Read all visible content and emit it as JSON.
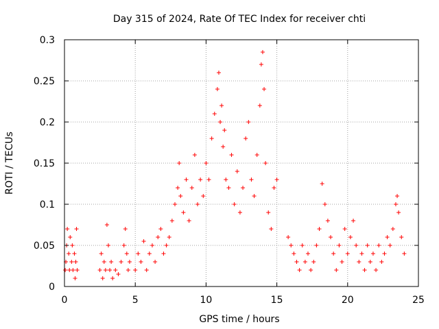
{
  "chart_data": {
    "type": "scatter",
    "title": "Day 315 of 2024, Rate Of TEC Index for receiver chti",
    "xlabel": "GPS time / hours",
    "ylabel": "ROTI / TECUs",
    "xlim": [
      0,
      25
    ],
    "ylim": [
      0,
      0.3
    ],
    "xticks": [
      0,
      5,
      10,
      15,
      20,
      25
    ],
    "yticks": [
      0,
      0.05,
      0.1,
      0.15,
      0.2,
      0.25,
      0.3
    ],
    "xtick_labels": [
      "0",
      "5",
      "10",
      "15",
      "20",
      "25"
    ],
    "ytick_labels": [
      "0",
      "0.05",
      "0.1",
      "0.15",
      "0.2",
      "0.25",
      "0.3"
    ],
    "grid": true,
    "marker": "plus",
    "color": "#ff0000",
    "series": [
      {
        "name": "ROTI",
        "x": [
          0.05,
          0.1,
          0.15,
          0.2,
          0.3,
          0.35,
          0.4,
          0.5,
          0.55,
          0.6,
          0.7,
          0.75,
          0.8,
          0.85,
          0.9,
          2.5,
          2.6,
          2.7,
          2.8,
          2.9,
          3.0,
          3.1,
          3.2,
          3.3,
          3.4,
          3.6,
          3.8,
          4.0,
          4.2,
          4.3,
          4.4,
          4.5,
          4.6,
          5.0,
          5.2,
          5.4,
          5.6,
          5.8,
          6.0,
          6.2,
          6.4,
          6.6,
          6.8,
          7.0,
          7.2,
          7.4,
          7.6,
          7.8,
          8.0,
          8.1,
          8.2,
          8.4,
          8.6,
          8.8,
          9.0,
          9.2,
          9.4,
          9.6,
          9.8,
          10.0,
          10.2,
          10.4,
          10.6,
          10.8,
          10.9,
          11.0,
          11.1,
          11.2,
          11.3,
          11.4,
          11.6,
          11.8,
          12.0,
          12.2,
          12.4,
          12.6,
          12.8,
          13.0,
          13.2,
          13.4,
          13.6,
          13.8,
          13.9,
          14.0,
          14.1,
          14.2,
          14.4,
          14.6,
          14.8,
          15.0,
          15.8,
          16.0,
          16.2,
          16.4,
          16.6,
          16.8,
          17.0,
          17.2,
          17.4,
          17.6,
          17.8,
          18.0,
          18.2,
          18.4,
          18.6,
          18.8,
          19.0,
          19.2,
          19.4,
          19.6,
          19.8,
          20.0,
          20.2,
          20.4,
          20.6,
          20.8,
          21.0,
          21.2,
          21.4,
          21.6,
          21.8,
          22.0,
          22.2,
          22.4,
          22.6,
          22.8,
          23.0,
          23.2,
          23.4,
          23.5,
          23.6,
          23.8,
          24.0
        ],
        "y": [
          0.02,
          0.03,
          0.05,
          0.07,
          0.04,
          0.02,
          0.06,
          0.03,
          0.05,
          0.02,
          0.04,
          0.01,
          0.03,
          0.07,
          0.02,
          0.02,
          0.04,
          0.01,
          0.03,
          0.02,
          0.075,
          0.05,
          0.02,
          0.03,
          0.01,
          0.02,
          0.015,
          0.03,
          0.05,
          0.07,
          0.04,
          0.02,
          0.03,
          0.02,
          0.04,
          0.03,
          0.055,
          0.02,
          0.04,
          0.05,
          0.03,
          0.06,
          0.07,
          0.04,
          0.05,
          0.06,
          0.08,
          0.1,
          0.12,
          0.15,
          0.11,
          0.09,
          0.13,
          0.08,
          0.12,
          0.16,
          0.1,
          0.13,
          0.11,
          0.15,
          0.13,
          0.18,
          0.21,
          0.24,
          0.26,
          0.2,
          0.22,
          0.17,
          0.19,
          0.13,
          0.12,
          0.16,
          0.1,
          0.14,
          0.09,
          0.12,
          0.18,
          0.2,
          0.13,
          0.11,
          0.16,
          0.22,
          0.27,
          0.285,
          0.24,
          0.15,
          0.09,
          0.07,
          0.12,
          0.13,
          0.06,
          0.05,
          0.04,
          0.03,
          0.02,
          0.05,
          0.03,
          0.04,
          0.02,
          0.03,
          0.05,
          0.07,
          0.125,
          0.1,
          0.08,
          0.06,
          0.04,
          0.02,
          0.05,
          0.03,
          0.07,
          0.04,
          0.06,
          0.08,
          0.05,
          0.03,
          0.04,
          0.02,
          0.05,
          0.03,
          0.04,
          0.02,
          0.05,
          0.03,
          0.04,
          0.06,
          0.05,
          0.07,
          0.1,
          0.11,
          0.09,
          0.06,
          0.04
        ]
      }
    ]
  }
}
